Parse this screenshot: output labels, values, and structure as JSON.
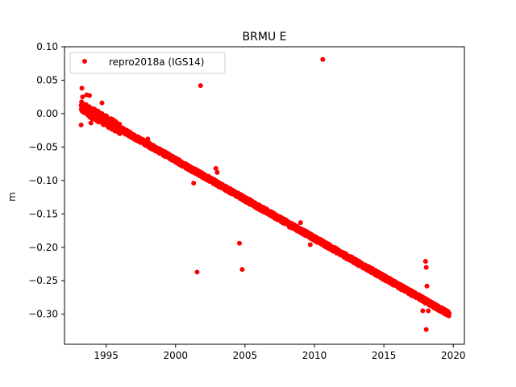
{
  "chart_data": {
    "type": "scatter",
    "title": "BRMU E",
    "xlabel": "",
    "ylabel": "m",
    "xlim": [
      1992.0,
      2020.8
    ],
    "ylim": [
      -0.345,
      0.1
    ],
    "xticks": [
      1995,
      2000,
      2005,
      2010,
      2015,
      2020
    ],
    "yticks": [
      0.1,
      0.05,
      0.0,
      -0.05,
      -0.1,
      -0.15,
      -0.2,
      -0.25,
      -0.3
    ],
    "legend_position": "top-left",
    "series": [
      {
        "name": "repro2018a (IGS14)",
        "color": "#ff0000",
        "trend": {
          "x_start": 1993.2,
          "y_start": 0.01,
          "x_end": 2019.7,
          "y_end": -0.3
        },
        "points": [
          {
            "x": 1993.25,
            "y": 0.038
          },
          {
            "x": 1993.2,
            "y": -0.017
          },
          {
            "x": 1993.3,
            "y": 0.025
          },
          {
            "x": 1993.45,
            "y": 0.012
          },
          {
            "x": 1993.6,
            "y": 0.028
          },
          {
            "x": 1993.8,
            "y": 0.027
          },
          {
            "x": 1993.9,
            "y": -0.014
          },
          {
            "x": 1993.95,
            "y": -0.007
          },
          {
            "x": 1994.2,
            "y": -0.003
          },
          {
            "x": 1994.5,
            "y": 0.0
          },
          {
            "x": 1994.7,
            "y": 0.016
          },
          {
            "x": 1995.1,
            "y": -0.016
          },
          {
            "x": 1995.3,
            "y": -0.008
          },
          {
            "x": 1998.0,
            "y": -0.038
          },
          {
            "x": 2001.3,
            "y": -0.104
          },
          {
            "x": 2001.55,
            "y": -0.237
          },
          {
            "x": 2001.8,
            "y": 0.042
          },
          {
            "x": 2002.9,
            "y": -0.082
          },
          {
            "x": 2003.0,
            "y": -0.088
          },
          {
            "x": 2004.6,
            "y": -0.194
          },
          {
            "x": 2004.8,
            "y": -0.233
          },
          {
            "x": 2005.3,
            "y": -0.128
          },
          {
            "x": 2008.2,
            "y": -0.17
          },
          {
            "x": 2009.0,
            "y": -0.163
          },
          {
            "x": 2009.7,
            "y": -0.196
          },
          {
            "x": 2010.6,
            "y": 0.081
          },
          {
            "x": 2017.8,
            "y": -0.295
          },
          {
            "x": 2018.0,
            "y": -0.221
          },
          {
            "x": 2018.05,
            "y": -0.23
          },
          {
            "x": 2018.1,
            "y": -0.258
          },
          {
            "x": 2018.05,
            "y": -0.323
          },
          {
            "x": 2018.2,
            "y": -0.295
          }
        ]
      }
    ]
  }
}
